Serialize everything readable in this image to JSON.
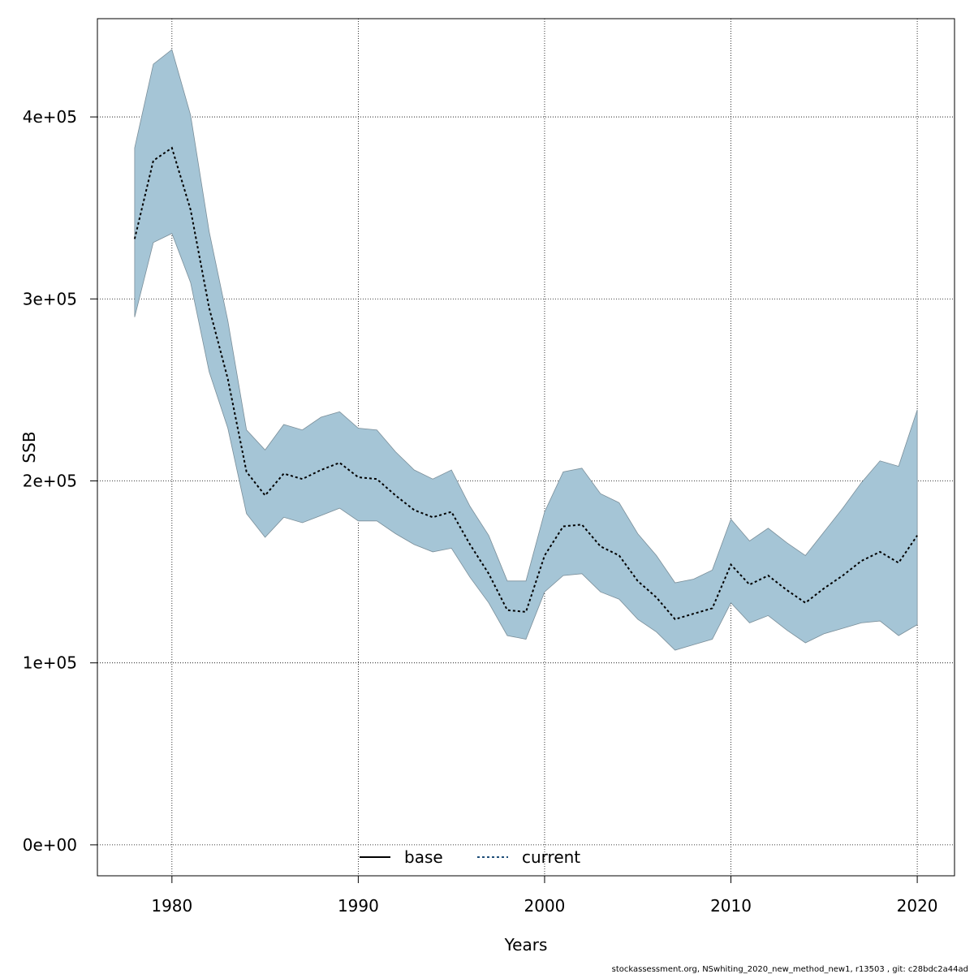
{
  "chart_data": {
    "type": "area",
    "xlabel": "Years",
    "ylabel": "SSB",
    "xlim": [
      1976,
      2022
    ],
    "ylim": [
      -17000,
      454000
    ],
    "x_ticks": [
      1980,
      1990,
      2000,
      2010,
      2020
    ],
    "x_tick_labels": [
      "1980",
      "1990",
      "2000",
      "2010",
      "2020"
    ],
    "y_ticks": [
      0,
      100000,
      200000,
      300000,
      400000
    ],
    "y_tick_labels": [
      "0e+00",
      "1e+05",
      "2e+05",
      "3e+05",
      "4e+05"
    ],
    "grid": true,
    "legend_position": "bottom",
    "legend": [
      {
        "label": "base",
        "style": "solid",
        "color": "#000000"
      },
      {
        "label": "current",
        "style": "dotted",
        "color": "#1f4e79"
      }
    ],
    "band_color": "#a5c5d6",
    "x": [
      1978,
      1979,
      1980,
      1981,
      1982,
      1983,
      1984,
      1985,
      1986,
      1987,
      1988,
      1989,
      1990,
      1991,
      1992,
      1993,
      1994,
      1995,
      1996,
      1997,
      1998,
      1999,
      2000,
      2001,
      2002,
      2003,
      2004,
      2005,
      2006,
      2007,
      2008,
      2009,
      2010,
      2011,
      2012,
      2013,
      2014,
      2015,
      2016,
      2017,
      2018,
      2019,
      2020
    ],
    "series": [
      {
        "name": "current",
        "values": [
          333000,
          376000,
          383000,
          349000,
          295000,
          256000,
          205000,
          192000,
          204000,
          201000,
          206000,
          210000,
          202000,
          201000,
          192000,
          184000,
          180000,
          183000,
          165000,
          149000,
          129000,
          128000,
          159000,
          175000,
          176000,
          164000,
          159000,
          145000,
          136000,
          124000,
          127000,
          130000,
          154000,
          143000,
          148000,
          140000,
          133000,
          141000,
          148000,
          156000,
          161000,
          155000,
          170000
        ],
        "lower": [
          290000,
          331000,
          336000,
          309000,
          260000,
          229000,
          182000,
          169000,
          180000,
          177000,
          181000,
          185000,
          178000,
          178000,
          171000,
          165000,
          161000,
          163000,
          147000,
          133000,
          115000,
          113000,
          139000,
          148000,
          149000,
          139000,
          135000,
          124000,
          117000,
          107000,
          110000,
          113000,
          133000,
          122000,
          126000,
          118000,
          111000,
          116000,
          119000,
          122000,
          123000,
          115000,
          121000
        ],
        "upper": [
          383000,
          429000,
          437000,
          401000,
          337000,
          288000,
          228000,
          217000,
          231000,
          228000,
          235000,
          238000,
          229000,
          228000,
          216000,
          206000,
          201000,
          206000,
          186000,
          170000,
          145000,
          145000,
          183000,
          205000,
          207000,
          193000,
          188000,
          171000,
          159000,
          144000,
          146000,
          151000,
          179000,
          167000,
          174000,
          166000,
          159000,
          172000,
          185000,
          199000,
          211000,
          208000,
          239000
        ]
      }
    ]
  },
  "footer": "stockassessment.org, NSwhiting_2020_new_method_new1, r13503 , git: c28bdc2a44ad"
}
